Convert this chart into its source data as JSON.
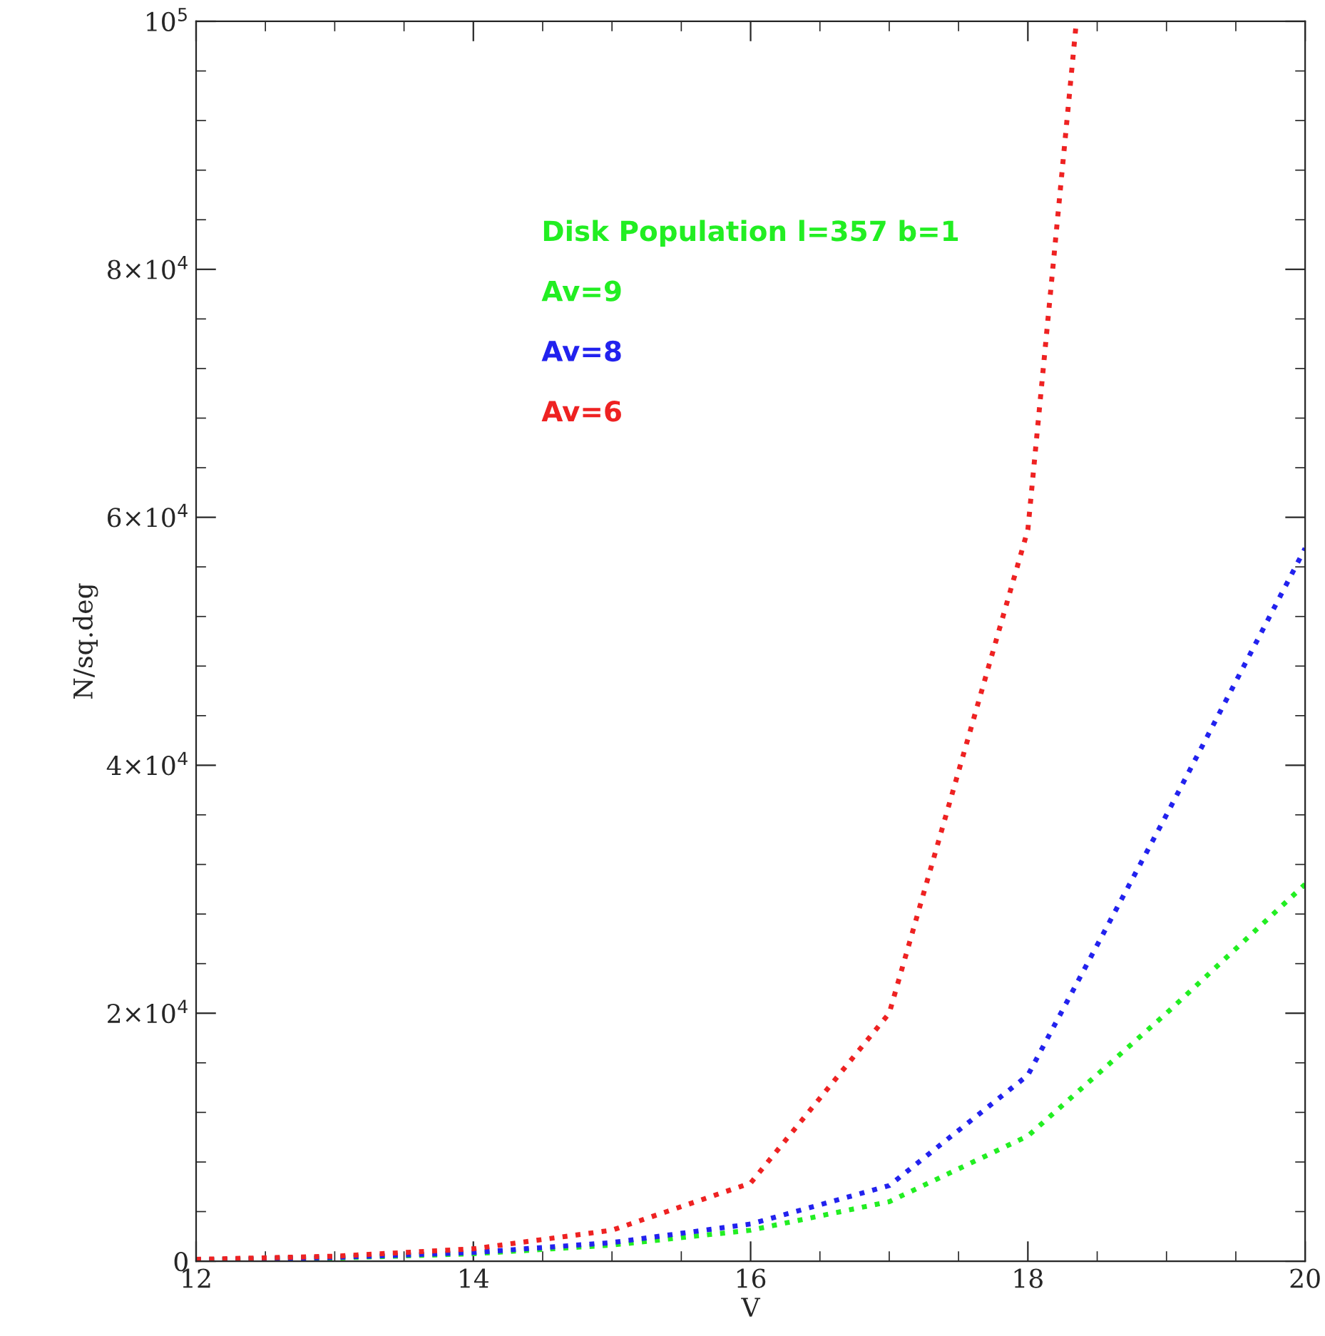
{
  "chart_data": {
    "type": "line",
    "xlabel": "V",
    "ylabel": "N/sq.deg",
    "legend_title": "Disk Population l=357 b=1",
    "legend": "top",
    "line_style": "dotted",
    "marker": "none",
    "grid": false,
    "xlim": [
      12,
      20
    ],
    "xticks": [
      12,
      14,
      16,
      18,
      20
    ],
    "ylim": [
      0,
      100000
    ],
    "yticks": [
      {
        "value": 0,
        "label": "0"
      },
      {
        "value": 20000,
        "label": "2×10$^{4}$"
      },
      {
        "value": 40000,
        "label": "4×10$^{4}$"
      },
      {
        "value": 60000,
        "label": "6×10$^{4}$"
      },
      {
        "value": 80000,
        "label": "8×10$^{4}$"
      },
      {
        "value": 100000,
        "label": "10$^{5}$"
      }
    ],
    "series": [
      {
        "name": "Av=9",
        "color": "#22ee22",
        "x": [
          12,
          13,
          14,
          15,
          16,
          17,
          18,
          19,
          20
        ],
        "values": [
          100,
          250,
          600,
          1300,
          2500,
          4800,
          10100,
          20000,
          30400
        ]
      },
      {
        "name": "Av=8",
        "color": "#2222ee",
        "x": [
          12,
          13,
          14,
          15,
          16,
          17,
          18,
          19,
          20
        ],
        "values": [
          100,
          300,
          700,
          1500,
          3000,
          6100,
          15000,
          36000,
          57500
        ]
      },
      {
        "name": "Av=6",
        "color": "#ee2222",
        "x": [
          12,
          13,
          14,
          15,
          16,
          17,
          18,
          18.35
        ],
        "values": [
          150,
          400,
          1000,
          2500,
          6300,
          20000,
          59000,
          100000
        ]
      }
    ]
  }
}
